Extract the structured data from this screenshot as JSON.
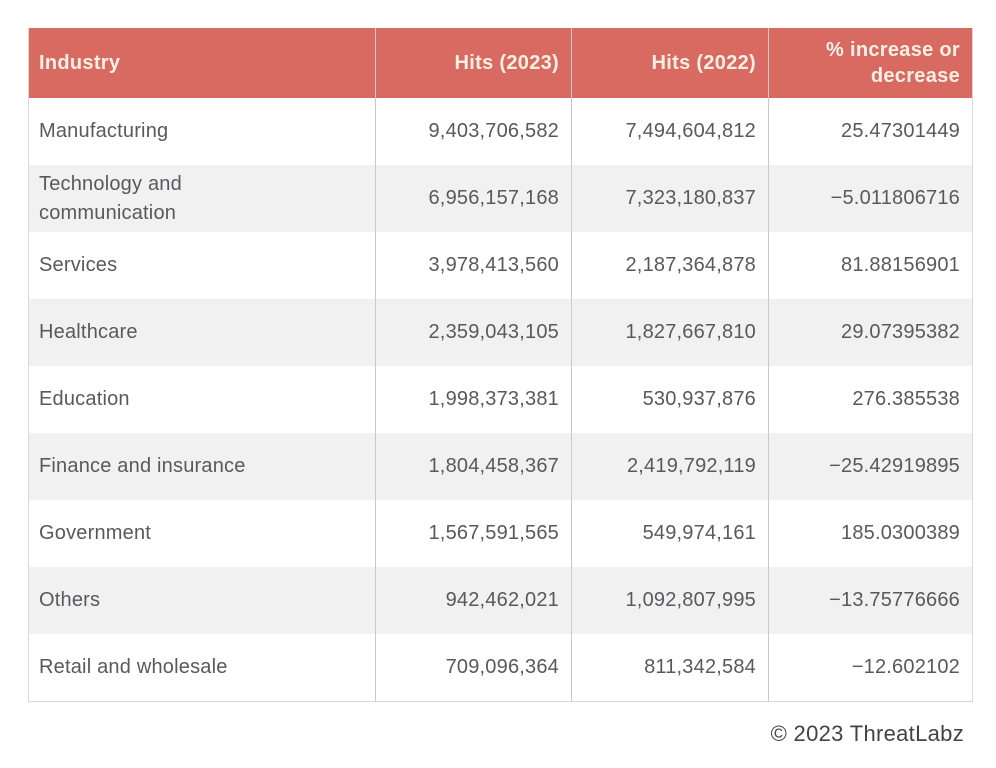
{
  "colors": {
    "header_bg": "#d86a62",
    "header_text": "#f8f0e3",
    "row_alt_bg": "#f1f1f2",
    "cell_text": "#59595c",
    "column_border": "#c9c9c9",
    "outer_border": "#d8d8d8"
  },
  "table": {
    "header": {
      "industry": "Industry",
      "hits_2023": "Hits (2023)",
      "hits_2022": "Hits (2022)",
      "pct": "% increase or decrease"
    },
    "rows": [
      {
        "industry": "Manufacturing",
        "hits_2023": "9,403,706,582",
        "hits_2022": "7,494,604,812",
        "pct": "25.47301449"
      },
      {
        "industry": "Technology and communication",
        "hits_2023": "6,956,157,168",
        "hits_2022": "7,323,180,837",
        "pct": "−5.011806716"
      },
      {
        "industry": "Services",
        "hits_2023": "3,978,413,560",
        "hits_2022": "2,187,364,878",
        "pct": "81.88156901"
      },
      {
        "industry": "Healthcare",
        "hits_2023": "2,359,043,105",
        "hits_2022": "1,827,667,810",
        "pct": "29.07395382"
      },
      {
        "industry": "Education",
        "hits_2023": "1,998,373,381",
        "hits_2022": "530,937,876",
        "pct": "276.385538"
      },
      {
        "industry": "Finance and insurance",
        "hits_2023": "1,804,458,367",
        "hits_2022": "2,419,792,119",
        "pct": "−25.42919895"
      },
      {
        "industry": "Government",
        "hits_2023": "1,567,591,565",
        "hits_2022": "549,974,161",
        "pct": "185.0300389"
      },
      {
        "industry": "Others",
        "hits_2023": "942,462,021",
        "hits_2022": "1,092,807,995",
        "pct": "−13.75776666"
      },
      {
        "industry": "Retail and wholesale",
        "hits_2023": "709,096,364",
        "hits_2022": "811,342,584",
        "pct": "−12.602102"
      }
    ]
  },
  "footer": {
    "attribution": "© 2023 ThreatLabz"
  },
  "chart_data": {
    "type": "table",
    "title": "Blocked hits by industry, 2023 vs 2022",
    "columns": [
      "Industry",
      "Hits (2023)",
      "Hits (2022)",
      "% increase or decrease"
    ],
    "rows": [
      [
        "Manufacturing",
        9403706582,
        7494604812,
        25.47301449
      ],
      [
        "Technology and communication",
        6956157168,
        7323180837,
        -5.011806716
      ],
      [
        "Services",
        3978413560,
        2187364878,
        81.88156901
      ],
      [
        "Healthcare",
        2359043105,
        1827667810,
        29.07395382
      ],
      [
        "Education",
        1998373381,
        530937876,
        276.385538
      ],
      [
        "Finance and insurance",
        1804458367,
        2419792119,
        -25.42919895
      ],
      [
        "Government",
        1567591565,
        549974161,
        185.0300389
      ],
      [
        "Others",
        942462021,
        1092807995,
        -13.75776666
      ],
      [
        "Retail and wholesale",
        709096364,
        811342584,
        -12.602102
      ]
    ],
    "source_note": "© 2023 ThreatLabz"
  }
}
